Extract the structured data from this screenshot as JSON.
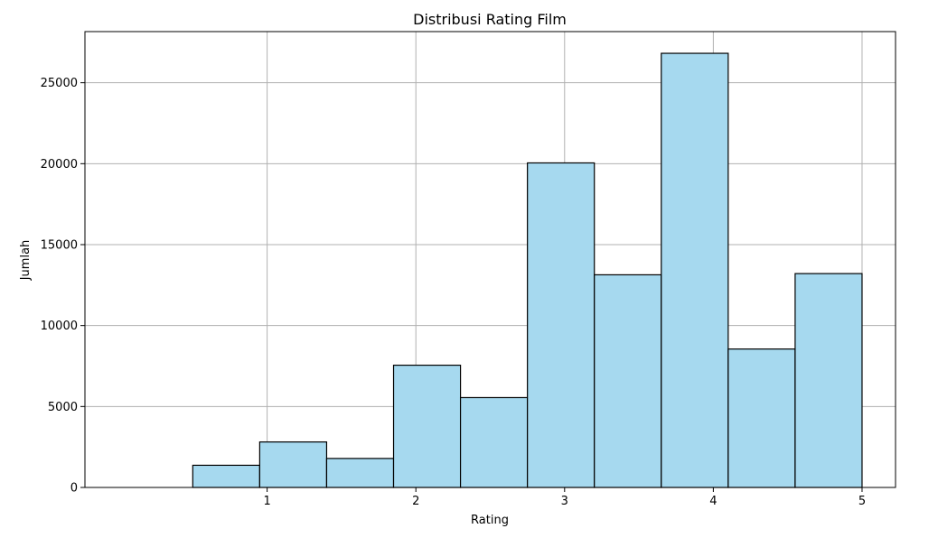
{
  "chart_data": {
    "type": "bar",
    "title": "Distribusi Rating Film",
    "xlabel": "Rating",
    "ylabel": "Jumlah",
    "bin_edges": [
      0.5,
      0.95,
      1.4,
      1.85,
      2.3,
      2.75,
      3.2,
      3.65,
      4.1,
      4.55,
      5.0
    ],
    "values": [
      1370,
      2811,
      1791,
      7551,
      5550,
      20047,
      13136,
      26818,
      8551,
      13211
    ],
    "xlim": [
      -0.225,
      5.225
    ],
    "ylim": [
      0,
      28159
    ],
    "xticks": [
      1,
      2,
      3,
      4,
      5
    ],
    "yticks": [
      0,
      5000,
      10000,
      15000,
      20000,
      25000
    ],
    "grid": true,
    "colors": {
      "bar_fill": "#a6d9ef",
      "bar_edge": "#000000",
      "grid": "#b0b0b0"
    }
  }
}
